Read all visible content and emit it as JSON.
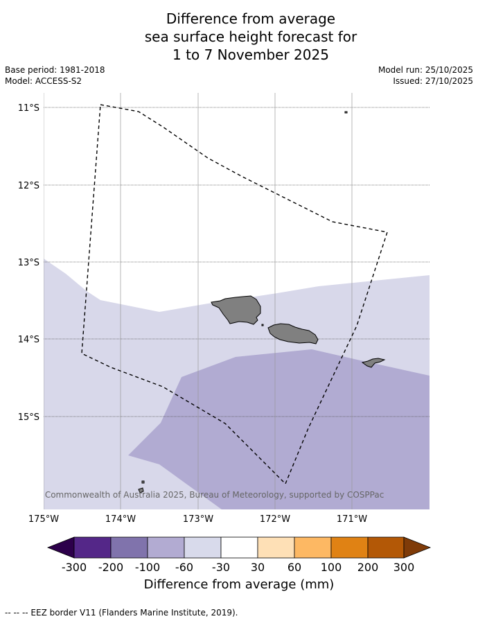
{
  "title": {
    "line1": "Difference from average",
    "line2": "sea surface height forecast for",
    "line3": "1 to 7 November 2025"
  },
  "meta": {
    "base_period": "Base period: 1981-2018",
    "model": "Model: ACCESS-S2",
    "model_run": "Model run: 25/10/2025",
    "issued": "Issued: 27/10/2025"
  },
  "map": {
    "lat_labels": [
      "11°S",
      "12°S",
      "13°S",
      "14°S",
      "15°S"
    ],
    "lon_labels": [
      "175°W",
      "174°W",
      "173°W",
      "172°W",
      "171°W"
    ],
    "copyright": "© Commonwealth of Australia 2025, Bureau of Meteorology, supported by COSPPac",
    "colors": {
      "band_neg30_neg60": "#d8d8ea",
      "band_neg60_neg100": "#b1abd2",
      "land": "#808080",
      "gridline": "#555555"
    }
  },
  "colorbar": {
    "ticks": [
      "-300",
      "-200",
      "-100",
      "-60",
      "-30",
      "30",
      "60",
      "100",
      "200",
      "300"
    ],
    "colors": [
      "#2d004b",
      "#542788",
      "#8073ac",
      "#b2abd2",
      "#d8daeb",
      "#ffffff",
      "#fee0b6",
      "#fdb863",
      "#e08214",
      "#b35806",
      "#7f3b08"
    ],
    "label": "Difference from average (mm)"
  },
  "footer": {
    "legend": "--  --  -- EEZ border V11 (Flanders Marine Institute, 2019)."
  }
}
